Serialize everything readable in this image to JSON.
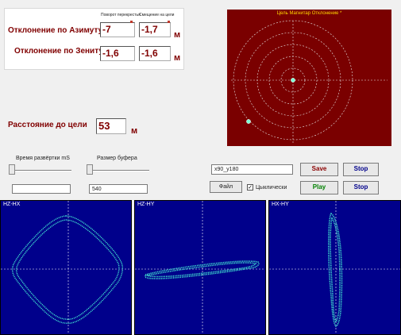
{
  "deviation": {
    "col1_header": "Поворот перекрестья",
    "col2_header": "Смещение на цели",
    "azimuth_label": "Отклонение по Азимуту",
    "azimuth_val1": "-7",
    "azimuth_val2": "-1,7",
    "azimuth_unit": "м",
    "zenith_label": "Отклонение по Зениту",
    "zenith_val1": "-1,6",
    "zenith_val2": "-1,6",
    "zenith_unit": "м"
  },
  "distance": {
    "label": "Расстояние до цели",
    "value": "53",
    "unit": "м"
  },
  "target": {
    "title": "Цель Магнитар Отклонение *",
    "ring_count": 5,
    "background": "#7a0000",
    "ring_color": "#e8e8e8"
  },
  "controls": {
    "sweep_label": "Время развёртки mS",
    "sweep_value": "",
    "buffer_label": "Размер буфера",
    "buffer_value": "540",
    "filename_value": "x90_y180",
    "save_label": "Save",
    "stop_label_1": "Stop",
    "file_label": "Файл",
    "cyclic_label": "Цыклически",
    "cyclic_checked": true,
    "play_label": "Play",
    "stop_label_2": "Stop"
  },
  "plots": [
    {
      "label": "HZ-HX"
    },
    {
      "label": "HZ-HY"
    },
    {
      "label": "HX-HY"
    }
  ],
  "colors": {
    "accent_text": "#800000",
    "plot_bg": "#00008b",
    "trace": "#40e0d0",
    "save": "#8b0000",
    "play": "#008000",
    "stop": "#00008b"
  }
}
